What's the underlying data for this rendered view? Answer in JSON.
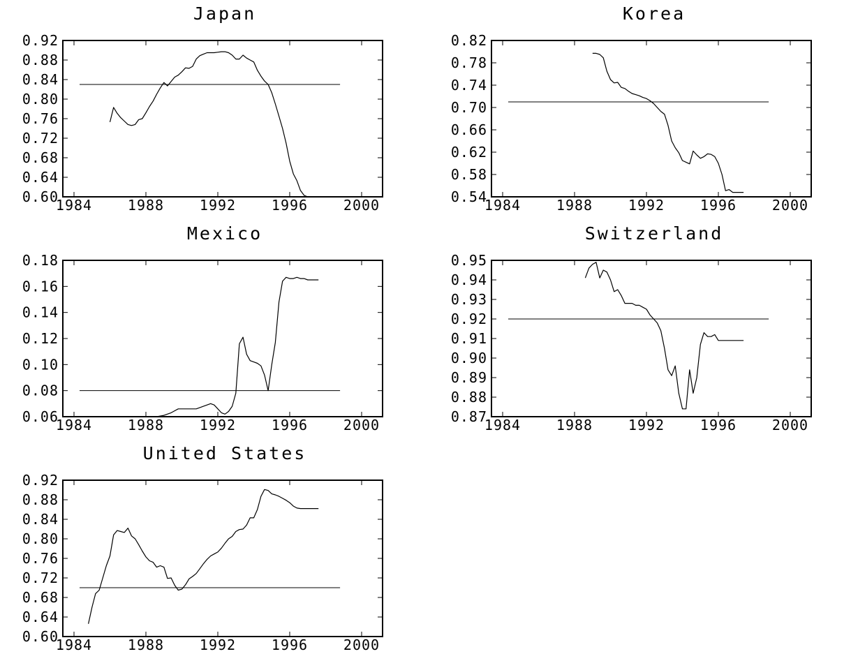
{
  "chart_data": [
    {
      "type": "line",
      "title": "Japan",
      "xlim": [
        1984,
        2000
      ],
      "ylim": [
        0.6,
        0.92
      ],
      "xticks": [
        "1984",
        "1988",
        "1992",
        "1996",
        "2000"
      ],
      "yticks": [
        "0.92",
        "0.88",
        "0.84",
        "0.80",
        "0.76",
        "0.72",
        "0.68",
        "0.64",
        "0.60"
      ],
      "reference_line": 0.83,
      "series": [
        {
          "x": [
            1986.0,
            1986.2,
            1986.4,
            1986.6,
            1986.8,
            1987.0,
            1987.2,
            1987.4,
            1987.6,
            1987.8,
            1988.0,
            1988.2,
            1988.4,
            1988.6,
            1988.8,
            1989.0,
            1989.2,
            1989.4,
            1989.6,
            1989.8,
            1990.0,
            1990.2,
            1990.4,
            1990.6,
            1990.8,
            1991.0,
            1991.2,
            1991.4,
            1991.6,
            1991.8,
            1992.0,
            1992.2,
            1992.4,
            1992.6,
            1992.8,
            1993.0,
            1993.2,
            1993.4,
            1993.6,
            1993.8,
            1994.0,
            1994.2,
            1994.4,
            1994.6,
            1994.8,
            1995.0,
            1995.2,
            1995.4,
            1995.6,
            1995.8,
            1996.0,
            1996.2,
            1996.4,
            1996.6,
            1996.8,
            1997.0,
            1997.2,
            1997.4,
            1997.6,
            1997.8
          ],
          "y": [
            0.753,
            0.783,
            0.771,
            0.762,
            0.755,
            0.748,
            0.746,
            0.748,
            0.758,
            0.76,
            0.772,
            0.785,
            0.796,
            0.81,
            0.823,
            0.834,
            0.827,
            0.836,
            0.845,
            0.849,
            0.856,
            0.864,
            0.863,
            0.867,
            0.882,
            0.889,
            0.892,
            0.895,
            0.895,
            0.895,
            0.896,
            0.897,
            0.897,
            0.895,
            0.89,
            0.882,
            0.882,
            0.89,
            0.884,
            0.88,
            0.876,
            0.859,
            0.847,
            0.837,
            0.83,
            0.813,
            0.79,
            0.765,
            0.74,
            0.71,
            0.673,
            0.647,
            0.633,
            0.613,
            0.603,
            0.6,
            0.6,
            0.6,
            0.6,
            0.6
          ]
        }
      ]
    },
    {
      "type": "line",
      "title": "Korea",
      "xlim": [
        1984,
        2000
      ],
      "ylim": [
        0.54,
        0.82
      ],
      "xticks": [
        "1984",
        "1988",
        "1992",
        "1996",
        "2000"
      ],
      "yticks": [
        "0.82",
        "0.78",
        "0.74",
        "0.70",
        "0.66",
        "0.62",
        "0.58",
        "0.54"
      ],
      "reference_line": 0.71,
      "series": [
        {
          "x": [
            1989.0,
            1989.2,
            1989.4,
            1989.6,
            1989.8,
            1990.0,
            1990.2,
            1990.4,
            1990.6,
            1990.8,
            1991.0,
            1991.2,
            1991.4,
            1991.6,
            1991.8,
            1992.0,
            1992.2,
            1992.4,
            1992.6,
            1992.8,
            1993.0,
            1993.2,
            1993.4,
            1993.6,
            1993.8,
            1994.0,
            1994.2,
            1994.4,
            1994.6,
            1994.8,
            1995.0,
            1995.2,
            1995.4,
            1995.6,
            1995.8,
            1996.0,
            1996.2,
            1996.4,
            1996.6,
            1996.8,
            1997.0,
            1997.2,
            1997.4
          ],
          "y": [
            0.797,
            0.797,
            0.795,
            0.789,
            0.765,
            0.75,
            0.744,
            0.745,
            0.736,
            0.734,
            0.729,
            0.725,
            0.723,
            0.721,
            0.718,
            0.716,
            0.712,
            0.707,
            0.7,
            0.693,
            0.688,
            0.668,
            0.64,
            0.628,
            0.619,
            0.605,
            0.602,
            0.599,
            0.622,
            0.615,
            0.609,
            0.612,
            0.617,
            0.616,
            0.612,
            0.6,
            0.58,
            0.551,
            0.553,
            0.548,
            0.548,
            0.548,
            0.548
          ]
        }
      ]
    },
    {
      "type": "line",
      "title": "Mexico",
      "xlim": [
        1984,
        2000
      ],
      "ylim": [
        0.06,
        0.18
      ],
      "xticks": [
        "1984",
        "1988",
        "1992",
        "1996",
        "2000"
      ],
      "yticks": [
        "0.18",
        "0.16",
        "0.14",
        "0.12",
        "0.10",
        "0.08",
        "0.06"
      ],
      "reference_line": 0.08,
      "series": [
        {
          "x": [
            1987.0,
            1987.4,
            1987.8,
            1988.2,
            1988.6,
            1989.0,
            1989.4,
            1989.8,
            1990.2,
            1990.6,
            1990.8,
            1991.0,
            1991.2,
            1991.4,
            1991.6,
            1991.8,
            1992.0,
            1992.2,
            1992.4,
            1992.6,
            1992.8,
            1993.0,
            1993.2,
            1993.4,
            1993.6,
            1993.8,
            1994.0,
            1994.2,
            1994.4,
            1994.6,
            1994.8,
            1995.0,
            1995.2,
            1995.4,
            1995.6,
            1995.8,
            1996.0,
            1996.2,
            1996.4,
            1996.6,
            1996.8,
            1997.0,
            1997.2,
            1997.4,
            1997.6
          ],
          "y": [
            0.058,
            0.058,
            0.058,
            0.058,
            0.06,
            0.061,
            0.063,
            0.066,
            0.066,
            0.066,
            0.066,
            0.067,
            0.068,
            0.069,
            0.07,
            0.069,
            0.066,
            0.063,
            0.062,
            0.064,
            0.068,
            0.078,
            0.116,
            0.121,
            0.108,
            0.103,
            0.102,
            0.101,
            0.099,
            0.092,
            0.08,
            0.1,
            0.117,
            0.148,
            0.164,
            0.167,
            0.166,
            0.166,
            0.167,
            0.166,
            0.166,
            0.165,
            0.165,
            0.165,
            0.165
          ]
        }
      ]
    },
    {
      "type": "line",
      "title": "Switzerland",
      "xlim": [
        1984,
        2000
      ],
      "ylim": [
        0.87,
        0.95
      ],
      "xticks": [
        "1984",
        "1988",
        "1992",
        "1996",
        "2000"
      ],
      "yticks": [
        "0.95",
        "0.94",
        "0.93",
        "0.92",
        "0.91",
        "0.90",
        "0.89",
        "0.88",
        "0.87"
      ],
      "reference_line": 0.92,
      "series": [
        {
          "x": [
            1988.6,
            1988.8,
            1989.0,
            1989.2,
            1989.4,
            1989.6,
            1989.8,
            1990.0,
            1990.2,
            1990.4,
            1990.6,
            1990.8,
            1991.0,
            1991.2,
            1991.4,
            1991.6,
            1991.8,
            1992.0,
            1992.2,
            1992.4,
            1992.6,
            1992.8,
            1993.0,
            1993.2,
            1993.4,
            1993.6,
            1993.8,
            1994.0,
            1994.2,
            1994.4,
            1994.6,
            1994.8,
            1995.0,
            1995.2,
            1995.4,
            1995.6,
            1995.8,
            1996.0,
            1996.2,
            1996.4,
            1996.6,
            1996.8,
            1997.0,
            1997.2,
            1997.4
          ],
          "y": [
            0.941,
            0.946,
            0.948,
            0.949,
            0.941,
            0.945,
            0.944,
            0.94,
            0.934,
            0.935,
            0.932,
            0.928,
            0.928,
            0.928,
            0.927,
            0.927,
            0.926,
            0.925,
            0.922,
            0.92,
            0.918,
            0.914,
            0.905,
            0.894,
            0.891,
            0.896,
            0.882,
            0.874,
            0.874,
            0.894,
            0.882,
            0.89,
            0.907,
            0.913,
            0.911,
            0.911,
            0.912,
            0.909,
            0.909,
            0.909,
            0.909,
            0.909,
            0.909,
            0.909,
            0.909
          ]
        }
      ]
    },
    {
      "type": "line",
      "title": "United States",
      "xlim": [
        1984,
        2000
      ],
      "ylim": [
        0.6,
        0.92
      ],
      "xticks": [
        "1984",
        "1988",
        "1992",
        "1996",
        "2000"
      ],
      "yticks": [
        "0.92",
        "0.88",
        "0.84",
        "0.80",
        "0.76",
        "0.72",
        "0.68",
        "0.64",
        "0.60"
      ],
      "reference_line": 0.7,
      "series": [
        {
          "x": [
            1984.8,
            1985.0,
            1985.2,
            1985.4,
            1985.6,
            1985.8,
            1986.0,
            1986.2,
            1986.4,
            1986.6,
            1986.8,
            1987.0,
            1987.2,
            1987.4,
            1987.6,
            1987.8,
            1988.0,
            1988.2,
            1988.4,
            1988.6,
            1988.8,
            1989.0,
            1989.2,
            1989.4,
            1989.6,
            1989.8,
            1990.0,
            1990.2,
            1990.4,
            1990.6,
            1990.8,
            1991.0,
            1991.2,
            1991.4,
            1991.6,
            1991.8,
            1992.0,
            1992.2,
            1992.4,
            1992.6,
            1992.8,
            1993.0,
            1993.2,
            1993.4,
            1993.6,
            1993.8,
            1994.0,
            1994.2,
            1994.4,
            1994.6,
            1994.8,
            1995.0,
            1995.2,
            1995.4,
            1995.6,
            1995.8,
            1996.0,
            1996.2,
            1996.4,
            1996.6,
            1996.8,
            1997.0,
            1997.2,
            1997.4,
            1997.6
          ],
          "y": [
            0.626,
            0.66,
            0.688,
            0.695,
            0.72,
            0.745,
            0.765,
            0.808,
            0.817,
            0.815,
            0.813,
            0.822,
            0.806,
            0.8,
            0.788,
            0.775,
            0.763,
            0.755,
            0.752,
            0.742,
            0.745,
            0.742,
            0.719,
            0.72,
            0.705,
            0.695,
            0.697,
            0.706,
            0.718,
            0.723,
            0.729,
            0.739,
            0.749,
            0.758,
            0.765,
            0.769,
            0.773,
            0.781,
            0.791,
            0.8,
            0.805,
            0.815,
            0.819,
            0.82,
            0.828,
            0.843,
            0.843,
            0.86,
            0.887,
            0.901,
            0.899,
            0.892,
            0.89,
            0.887,
            0.883,
            0.879,
            0.874,
            0.867,
            0.863,
            0.862,
            0.862,
            0.862,
            0.862,
            0.862,
            0.862
          ]
        }
      ]
    }
  ]
}
